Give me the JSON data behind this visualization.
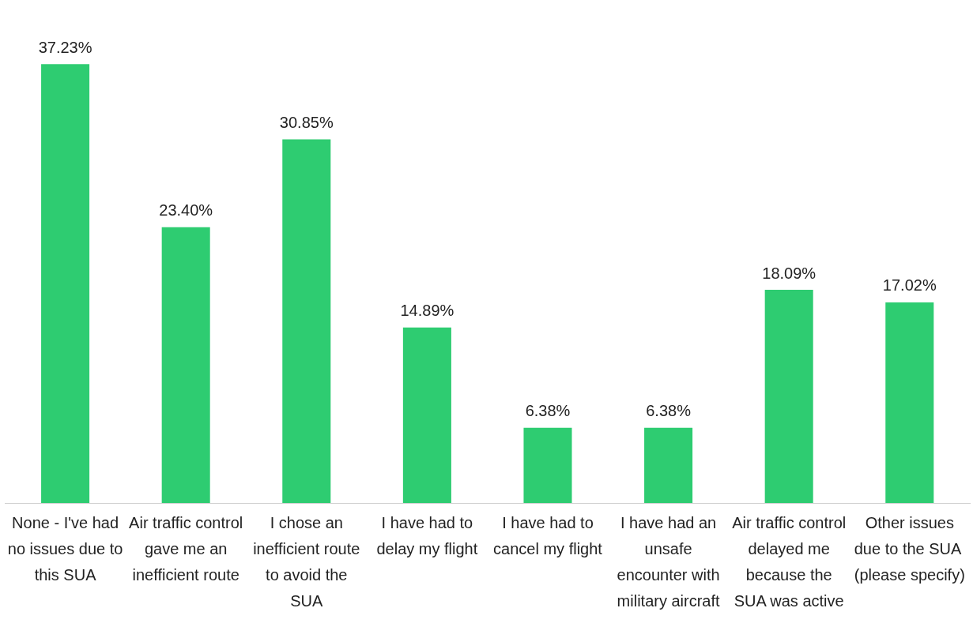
{
  "chart_data": {
    "type": "bar",
    "categories": [
      "None - I've had no issues due to this SUA",
      "Air traffic control gave me an inefficient route",
      "I chose an inefficient route to avoid the SUA",
      "I have had to delay my flight",
      "I have had to cancel my flight",
      "I have had an unsafe encounter with military aircraft",
      "Air traffic control delayed me because the SUA was active",
      "Other issues due to the SUA  (please specify)"
    ],
    "values": [
      37.23,
      23.4,
      30.85,
      14.89,
      6.38,
      6.38,
      18.09,
      17.02
    ],
    "value_labels": [
      "37.23%",
      "23.40%",
      "30.85%",
      "14.89%",
      "6.38%",
      "6.38%",
      "18.09%",
      "17.02%"
    ],
    "color": "#2ecc71",
    "grid": false,
    "legend": false
  }
}
